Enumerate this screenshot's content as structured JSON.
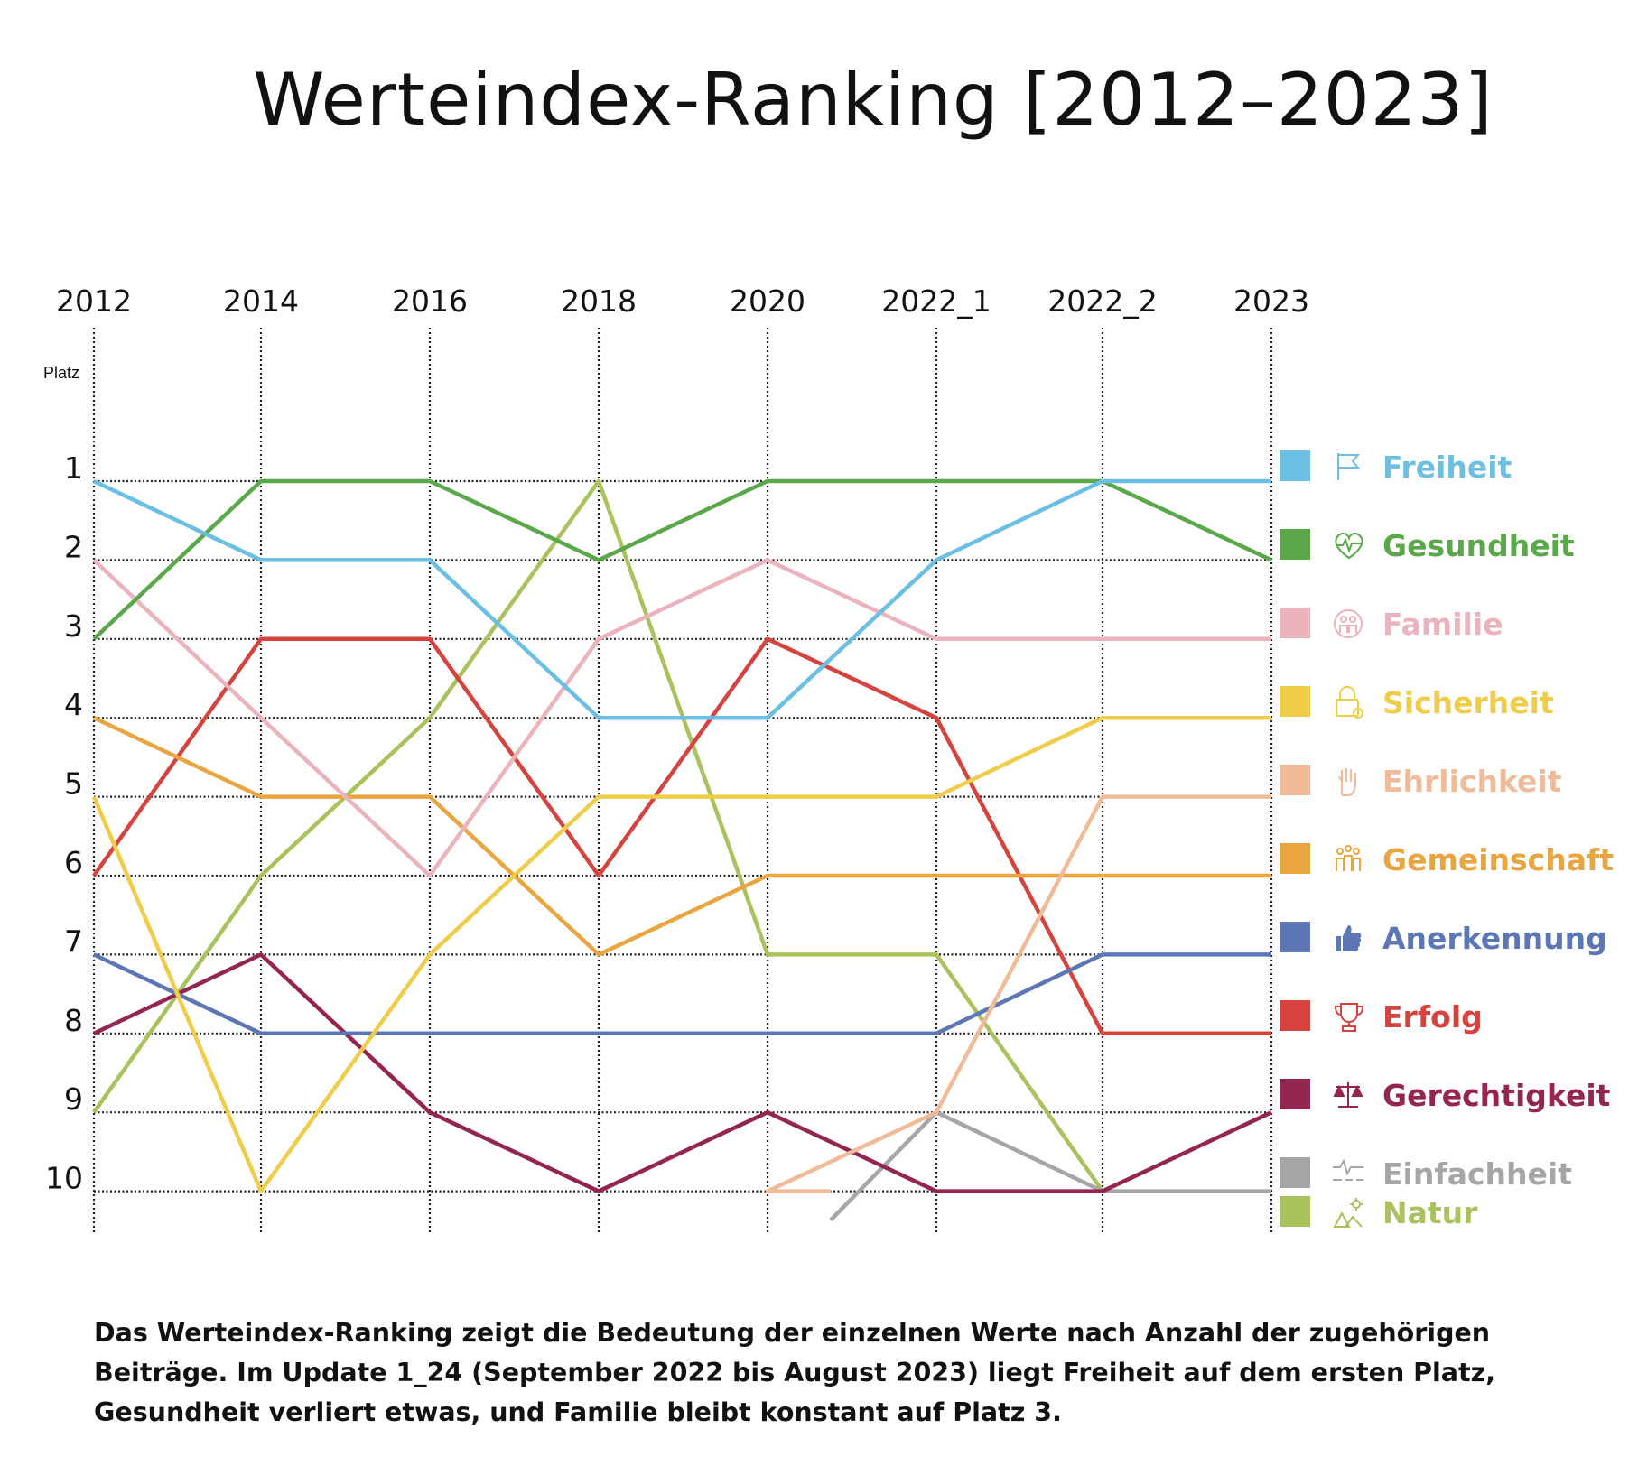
{
  "title": "Werteindex-Ranking [2012–2023]",
  "caption": "Das Werteindex-Ranking zeigt die Bedeutung der einzelnen Werte nach Anzahl der zugehörigen Beiträge. Im Update 1_24 (September 2022 bis August 2023) liegt Freiheit auf dem ersten Platz, Gesundheit verliert etwas, und Familie bleibt konstant auf Platz 3.",
  "chart_data": {
    "type": "line",
    "title": "Werteindex-Ranking [2012–2023]",
    "ylabel": "Platz",
    "y_inverted": true,
    "ylim": [
      1,
      10
    ],
    "grid": true,
    "legend_position": "right",
    "categories": [
      "2012",
      "2014",
      "2016",
      "2018",
      "2020",
      "2022_1",
      "2022_2",
      "2023"
    ],
    "y_ticks": [
      1,
      2,
      3,
      4,
      5,
      6,
      7,
      8,
      9,
      10
    ],
    "series": [
      {
        "name": "Freiheit",
        "color": "#6bbfe3",
        "icon": "flag-icon",
        "values": [
          1,
          2,
          2,
          4,
          4,
          2,
          1,
          1
        ]
      },
      {
        "name": "Gesundheit",
        "color": "#5aa84a",
        "icon": "heart-pulse-icon",
        "values": [
          3,
          1,
          1,
          2,
          1,
          1,
          1,
          2
        ]
      },
      {
        "name": "Familie",
        "color": "#ebb3bc",
        "icon": "family-icon",
        "values": [
          2,
          4,
          6,
          3,
          2,
          3,
          3,
          3
        ]
      },
      {
        "name": "Sicherheit",
        "color": "#efcd4a",
        "icon": "lock-icon",
        "values": [
          5,
          10,
          7,
          5,
          5,
          5,
          4,
          4
        ]
      },
      {
        "name": "Ehrlichkeit",
        "color": "#f0bb98",
        "icon": "hand-icon",
        "values": [
          null,
          null,
          null,
          null,
          10,
          9,
          5,
          5
        ]
      },
      {
        "name": "Gemeinschaft",
        "color": "#e9a540",
        "icon": "people-icon",
        "values": [
          4,
          5,
          5,
          7,
          6,
          6,
          6,
          6
        ]
      },
      {
        "name": "Anerkennung",
        "color": "#5d77b4",
        "icon": "thumbs-up-icon",
        "values": [
          7,
          8,
          8,
          8,
          8,
          8,
          7,
          7
        ]
      },
      {
        "name": "Erfolg",
        "color": "#d6423e",
        "icon": "trophy-icon",
        "values": [
          6,
          3,
          3,
          6,
          3,
          4,
          8,
          8
        ]
      },
      {
        "name": "Gerechtigkeit",
        "color": "#942550",
        "icon": "scales-icon",
        "values": [
          8,
          7,
          9,
          10,
          9,
          10,
          10,
          9
        ]
      },
      {
        "name": "Einfachheit",
        "color": "#a6a6a6",
        "icon": "balance-line-icon",
        "values": [
          null,
          null,
          null,
          null,
          null,
          9,
          10,
          10
        ]
      },
      {
        "name": "Natur",
        "color": "#a9c25b",
        "icon": "nature-icon",
        "values": [
          9,
          6,
          4,
          1,
          7,
          7,
          10,
          null
        ]
      }
    ]
  }
}
